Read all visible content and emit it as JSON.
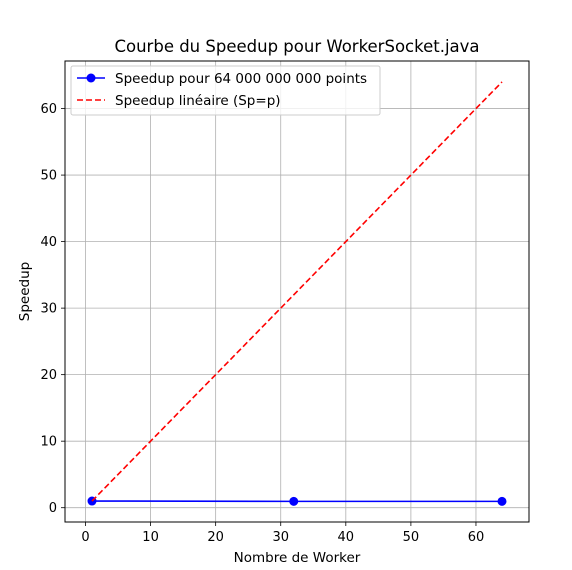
{
  "chart_data": {
    "type": "line",
    "title": "Courbe du Speedup pour WorkerSocket.java",
    "xlabel": "Nombre de Worker",
    "ylabel": "Speedup",
    "xlim": [
      -3.15,
      68.15
    ],
    "ylim": [
      -2.15,
      67.15
    ],
    "xticks": [
      0,
      10,
      20,
      30,
      40,
      50,
      60
    ],
    "yticks": [
      0,
      10,
      20,
      30,
      40,
      50,
      60
    ],
    "grid": true,
    "legend_position": "top-left",
    "series": [
      {
        "name": "Speedup pour 64 000 000 000 points",
        "color": "#0000ff",
        "style": "solid",
        "marker": "circle",
        "x": [
          1,
          32,
          64
        ],
        "y": [
          1.0,
          0.95,
          0.95
        ]
      },
      {
        "name": "Speedup linéaire (Sp=p)",
        "color": "#ff0000",
        "style": "dashed",
        "marker": "none",
        "x": [
          1,
          64
        ],
        "y": [
          1,
          64
        ]
      }
    ]
  }
}
